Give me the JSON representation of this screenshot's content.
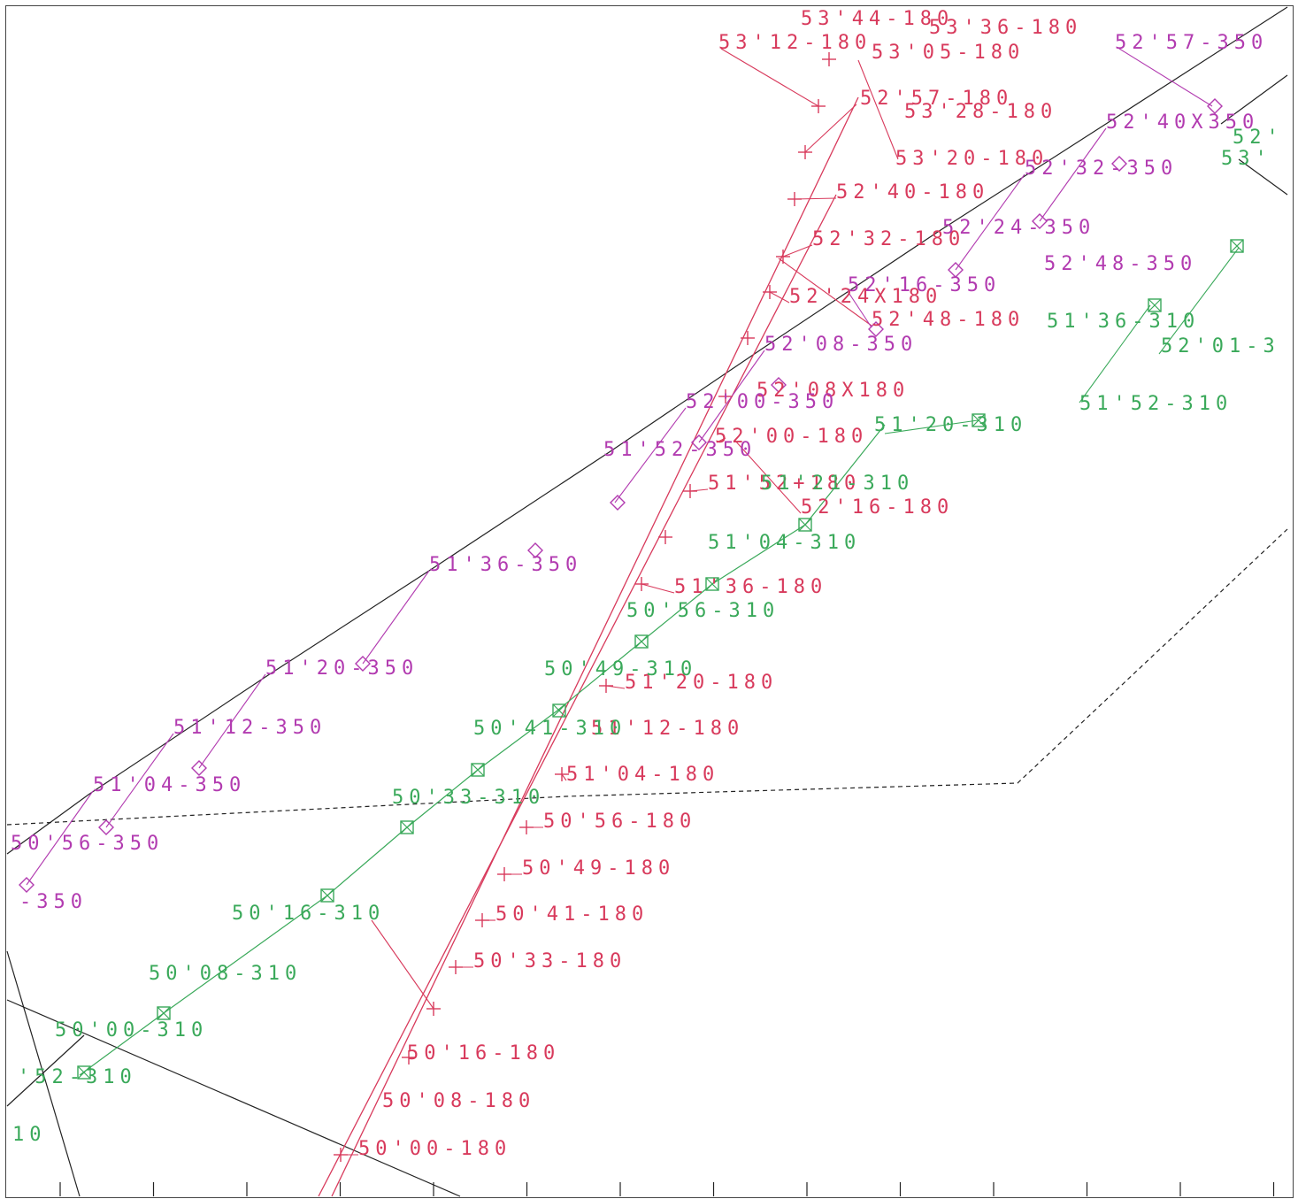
{
  "colors": {
    "series_180": "#d83a5c",
    "series_350": "#b23bb0",
    "series_310": "#3aa95a",
    "reference": "#222222"
  },
  "marker_legend": {
    "series_180": "plus-marker",
    "series_350": "diamond-marker",
    "series_310": "boxed-x-marker"
  },
  "labels_180": [
    "53'44-180",
    "53'36-180",
    "53'12-180",
    "53'05-180",
    "52'57-180",
    "53'28-180",
    "53'20-180",
    "52'40-180",
    "52'32-180",
    "52'24X180",
    "52'48-180",
    "52'08X180",
    "52'00-180",
    "51'52+180",
    "52'16-180",
    "51'36-180",
    "51'20-180",
    "51'12-180",
    "51'04-180",
    "50'56-180",
    "50'49-180",
    "50'41-180",
    "50'33-180",
    "50'16-180",
    "50'08-180",
    "50'00-180"
  ],
  "labels_350": [
    "52'57-350",
    "52'40X350",
    "52'32-350",
    "52'24-350",
    "52'48-350",
    "52'16-350",
    "52'08-350",
    "52'00-350",
    "51'52-350",
    "51'36-350",
    "51'20-350",
    "51'12-350",
    "51'04-350",
    "50'56-350",
    "-350"
  ],
  "labels_310": [
    "51'36-310",
    "52'01-3",
    "51'52-310",
    "51'20-310",
    "51'21-310",
    "51'04-310",
    "50'56-310",
    "50'49-310",
    "50'41-310",
    "50'33-310",
    "50'16-310",
    "50'08-310",
    "50'00-310",
    "'52-310",
    "10",
    "52'",
    "53'"
  ]
}
